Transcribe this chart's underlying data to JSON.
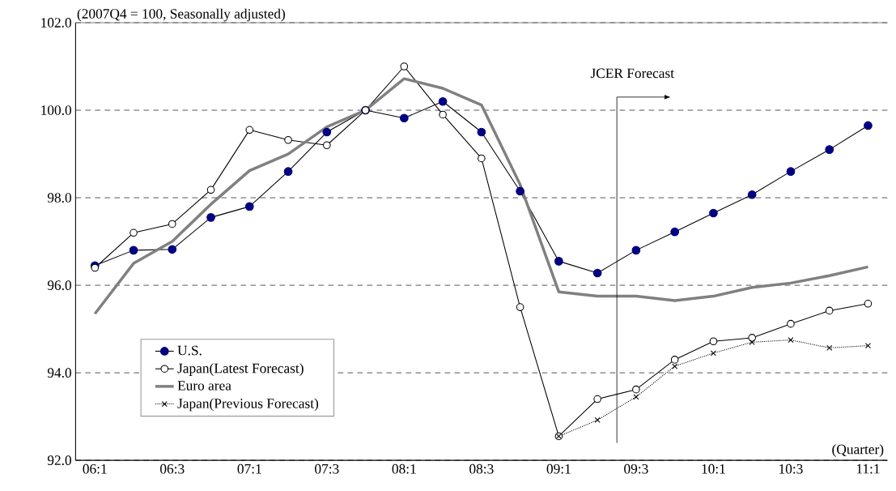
{
  "chart_data": {
    "type": "line",
    "ylabel": "(2007Q4 = 100, Seasonally adjusted)",
    "xlabel": "(Quarter)",
    "categories": [
      "06:1",
      null,
      "06:3",
      null,
      "07:1",
      null,
      "07:3",
      null,
      "08:1",
      null,
      "08:3",
      null,
      "09:1",
      null,
      "09:3",
      null,
      "10:1",
      null,
      "10:3",
      null,
      "11:1"
    ],
    "ylim": [
      92,
      102
    ],
    "yticks": [
      {
        "value": 92,
        "label": "92.0"
      },
      {
        "value": 94,
        "label": "94.0"
      },
      {
        "value": 96,
        "label": "96.0"
      },
      {
        "value": 98,
        "label": "98.0"
      },
      {
        "value": 100,
        "label": "100.0"
      },
      {
        "value": 102,
        "label": "102.0"
      }
    ],
    "grid": "y",
    "legend": "bottom left",
    "series": [
      {
        "name": "U.S.",
        "color": "#000080",
        "marker": "circle",
        "line_style": "solid",
        "values": [
          96.45,
          96.8,
          96.82,
          97.55,
          97.8,
          98.6,
          99.5,
          100.0,
          99.82,
          100.2,
          99.5,
          98.15,
          96.55,
          96.28,
          96.8,
          97.22,
          97.65,
          98.07,
          98.6,
          99.1,
          99.65
        ]
      },
      {
        "name": "Japan(Latest Forecast)",
        "color": "#000000",
        "marker": "circle",
        "line_style": "solid",
        "values": [
          96.4,
          97.2,
          97.4,
          98.18,
          99.55,
          99.32,
          99.2,
          100.0,
          101.0,
          99.9,
          98.9,
          95.5,
          92.55,
          93.4,
          93.62,
          94.3,
          94.72,
          94.8,
          95.12,
          95.42,
          95.58
        ]
      },
      {
        "name": "Euro area",
        "color": "#808080",
        "marker": "none",
        "line_style": "solid",
        "values": [
          95.35,
          96.5,
          97.0,
          97.85,
          98.62,
          99.0,
          99.62,
          100.0,
          100.72,
          100.5,
          100.12,
          98.3,
          95.85,
          95.75,
          95.75,
          95.65,
          95.75,
          95.95,
          96.05,
          96.22,
          96.42
        ]
      },
      {
        "name": "Japan(Previous Forecast)",
        "color": "#000000",
        "marker": "cross",
        "line_style": "dotted",
        "values": [
          null,
          null,
          null,
          null,
          null,
          null,
          null,
          null,
          null,
          null,
          null,
          null,
          92.55,
          92.92,
          93.45,
          94.15,
          94.45,
          94.7,
          94.75,
          94.57,
          94.62
        ]
      }
    ],
    "annotations": [
      "JCER Forecast"
    ]
  }
}
